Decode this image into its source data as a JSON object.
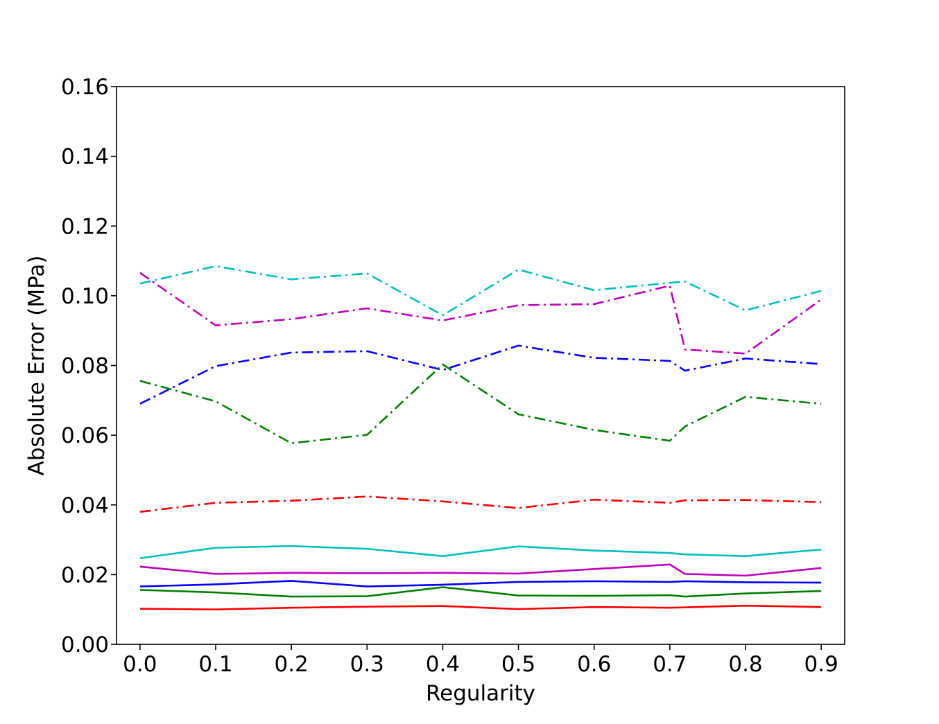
{
  "chart_data": {
    "type": "line",
    "title": "",
    "xlabel": "Regularity",
    "ylabel": "Absolute Error (MPa)",
    "xlim": [
      -0.031,
      0.931
    ],
    "ylim": [
      0.0,
      0.16
    ],
    "xticks": [
      0.0,
      0.1,
      0.2,
      0.3,
      0.4,
      0.5,
      0.6,
      0.7,
      0.8,
      0.9
    ],
    "xtick_labels": [
      "0.0",
      "0.1",
      "0.2",
      "0.3",
      "0.4",
      "0.5",
      "0.6",
      "0.7",
      "0.8",
      "0.9"
    ],
    "yticks": [
      0.0,
      0.02,
      0.04,
      0.06,
      0.08,
      0.1,
      0.12,
      0.14,
      0.16
    ],
    "ytick_labels": [
      "0.00",
      "0.02",
      "0.04",
      "0.06",
      "0.08",
      "0.10",
      "0.12",
      "0.14",
      "0.16"
    ],
    "grid": false,
    "legend": "none",
    "x": [
      0.0,
      0.1,
      0.2,
      0.3,
      0.4,
      0.5,
      0.6,
      0.7,
      0.72,
      0.8,
      0.9
    ],
    "series": [
      {
        "color": "#0000ff",
        "style": "solid",
        "values": [
          0.0166,
          0.0172,
          0.0182,
          0.0166,
          0.0171,
          0.0179,
          0.0181,
          0.0179,
          0.0181,
          0.0178,
          0.0177
        ]
      },
      {
        "color": "#ff0000",
        "style": "solid",
        "values": [
          0.0102,
          0.01,
          0.0105,
          0.0108,
          0.011,
          0.0101,
          0.0107,
          0.0105,
          0.0106,
          0.0111,
          0.0107
        ]
      },
      {
        "color": "#008000",
        "style": "solid",
        "values": [
          0.0156,
          0.0149,
          0.0137,
          0.0138,
          0.0164,
          0.014,
          0.0139,
          0.0141,
          0.0137,
          0.0146,
          0.0153
        ]
      },
      {
        "color": "#bf00bf",
        "style": "solid",
        "values": [
          0.0223,
          0.0202,
          0.0205,
          0.0204,
          0.0205,
          0.0203,
          0.0216,
          0.0229,
          0.0202,
          0.0197,
          0.0219
        ]
      },
      {
        "color": "#00bfbf",
        "style": "solid",
        "values": [
          0.0247,
          0.0277,
          0.0282,
          0.0274,
          0.0253,
          0.0281,
          0.0269,
          0.0262,
          0.0258,
          0.0253,
          0.0272
        ]
      },
      {
        "color": "#0000ff",
        "style": "dashdot",
        "values": [
          0.069,
          0.0798,
          0.0837,
          0.0841,
          0.0787,
          0.0857,
          0.0822,
          0.0813,
          0.0785,
          0.082,
          0.0804
        ]
      },
      {
        "color": "#ff0000",
        "style": "dashdot",
        "values": [
          0.038,
          0.0406,
          0.0412,
          0.0424,
          0.041,
          0.0391,
          0.0415,
          0.0406,
          0.0413,
          0.0414,
          0.0408
        ]
      },
      {
        "color": "#008000",
        "style": "dashdot",
        "values": [
          0.0756,
          0.0697,
          0.0577,
          0.0601,
          0.0803,
          0.066,
          0.0615,
          0.0584,
          0.0625,
          0.071,
          0.069
        ]
      },
      {
        "color": "#bf00bf",
        "style": "dashdot",
        "values": [
          0.1066,
          0.0915,
          0.0933,
          0.0964,
          0.0929,
          0.0973,
          0.0976,
          0.1029,
          0.0846,
          0.0834,
          0.0989
        ]
      },
      {
        "color": "#00bfbf",
        "style": "dashdot",
        "values": [
          0.1035,
          0.1085,
          0.1047,
          0.1064,
          0.0944,
          0.1075,
          0.1016,
          0.1037,
          0.1041,
          0.0958,
          0.1014
        ]
      }
    ]
  }
}
